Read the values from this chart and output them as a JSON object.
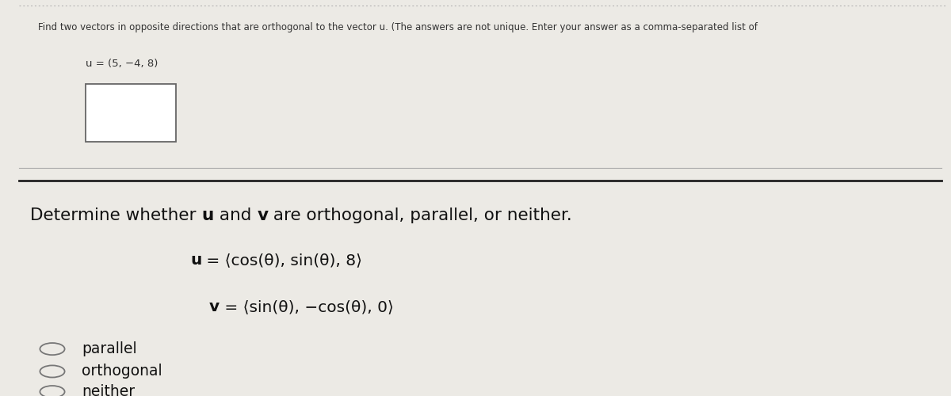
{
  "bg_color": "#eceae5",
  "top_bg": "#ffffff",
  "instruction_text": "Find two vectors in opposite directions that are orthogonal to the vector u. (The answers are not unique. Enter your answer as a comma-separated list of",
  "u_label": "u = (5, −4, 8)",
  "bottom_bg": "#d8d5d0",
  "title_normal1": "Determine whether ",
  "title_bold_u": "u",
  "title_normal2": " and ",
  "title_bold_v": "v",
  "title_normal3": " are orthogonal, parallel, or neither.",
  "u_eq_bold": "u",
  "u_eq_rest": " = ⟨cos(θ), sin(θ), 8⟩",
  "v_eq_bold": "v",
  "v_eq_rest": " = ⟨sin(θ), −cos(θ), 0⟩",
  "radio_labels": [
    "parallel",
    "orthogonal",
    "neither"
  ]
}
